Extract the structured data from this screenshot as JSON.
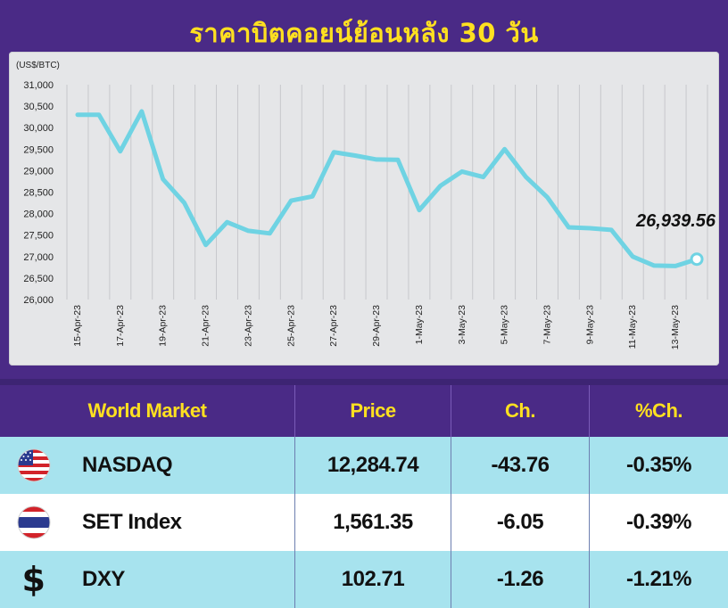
{
  "title": "ราคาบิตคอยน์ย้อนหลัง 30 วัน",
  "chart_data": {
    "type": "line",
    "unit_label": "(US$/BTC)",
    "ylim": [
      26000,
      31000
    ],
    "y_ticks": [
      "31,000",
      "30,500",
      "30,000",
      "29,500",
      "29,000",
      "28,500",
      "28,000",
      "27,500",
      "27,000",
      "26,500",
      "26,000"
    ],
    "x_tick_labels": [
      "15-Apr-23",
      "17-Apr-23",
      "19-Apr-23",
      "21-Apr-23",
      "23-Apr-23",
      "25-Apr-23",
      "27-Apr-23",
      "29-Apr-23",
      "1-May-23",
      "3-May-23",
      "5-May-23",
      "7-May-23",
      "9-May-23",
      "11-May-23",
      "13-May-23"
    ],
    "grid": "vertical",
    "line_color": "#6fd3e3",
    "series": [
      {
        "values": [
          30300,
          30300,
          29450,
          30380,
          28800,
          28250,
          27270,
          27800,
          27600,
          27540,
          28300,
          28400,
          29430,
          29350,
          29260,
          29250,
          28080,
          28650,
          28980,
          28850,
          29500,
          28850,
          28380,
          27680,
          27660,
          27620,
          27000,
          26790,
          26780,
          26939.56
        ]
      }
    ],
    "last_value_label": "26,939.56"
  },
  "table": {
    "headers": [
      "World Market",
      "Price",
      "Ch.",
      "%Ch."
    ],
    "rows": [
      {
        "icon": "us-flag-icon",
        "name": "NASDAQ",
        "price": "12,284.74",
        "ch": "-43.76",
        "pct": "-0.35%"
      },
      {
        "icon": "thai-flag-icon",
        "name": "SET Index",
        "price": "1,561.35",
        "ch": "-6.05",
        "pct": "-0.39%"
      },
      {
        "icon": "dollar-sign-icon",
        "name": "DXY",
        "price": "102.71",
        "ch": "-1.26",
        "pct": "-1.21%",
        "symbol": "$"
      }
    ]
  }
}
